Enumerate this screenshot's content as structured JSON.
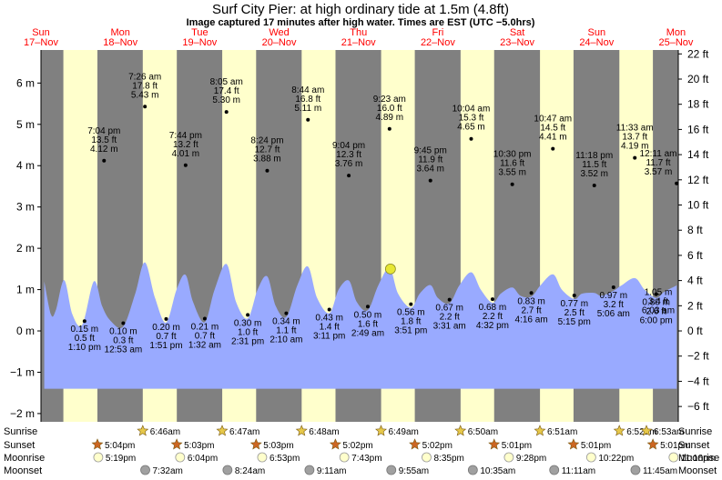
{
  "colors": {
    "day_bg": "#ffffcc",
    "night_bg": "#808080",
    "tide_fill": "#99aaff",
    "current_marker": "#e6e633",
    "day_text": "#ff0000",
    "sun_star": "#e6c84a",
    "sunset_star": "#cc6622",
    "moonrise": "#ffffcc",
    "moonset": "#a0a0a0"
  },
  "chart_data": {
    "type": "area",
    "title": "Surf City Pier: at high  ordinary tide at 1.5m (4.8ft)",
    "subtitle": "Image captured 17 minutes after high water. Times are EST (UTC −5.0hrs)",
    "days": [
      {
        "dow": "Sun",
        "date": "17–Nov"
      },
      {
        "dow": "Mon",
        "date": "18–Nov"
      },
      {
        "dow": "Tue",
        "date": "19–Nov"
      },
      {
        "dow": "Wed",
        "date": "20–Nov"
      },
      {
        "dow": "Thu",
        "date": "21–Nov"
      },
      {
        "dow": "Fri",
        "date": "22–Nov"
      },
      {
        "dow": "Sat",
        "date": "23–Nov"
      },
      {
        "dow": "Sun",
        "date": "24–Nov"
      },
      {
        "dow": "Mon",
        "date": "25–Nov"
      }
    ],
    "x_unit": "hours from 17-Nov 00:00 EST",
    "x_range": [
      0,
      192.7
    ],
    "y_left": {
      "unit": "m",
      "ylim": [
        -2.2,
        6.8
      ],
      "ticks": [
        -2,
        -1,
        0,
        1,
        2,
        3,
        4,
        5,
        6
      ]
    },
    "y_right": {
      "unit": "ft",
      "ticks": [
        -6,
        -4,
        -2,
        0,
        2,
        4,
        6,
        8,
        10,
        12,
        14,
        16,
        18,
        20,
        22
      ]
    },
    "nights": [
      [
        0,
        6.77
      ],
      [
        17.07,
        30.78
      ],
      [
        41.07,
        54.8
      ],
      [
        65.05,
        78.82
      ],
      [
        89.05,
        102.85
      ],
      [
        113.03,
        126.87
      ],
      [
        137.02,
        150.88
      ],
      [
        161.02,
        174.88
      ],
      [
        185.02,
        192.7
      ]
    ],
    "tide_curve_m": [
      [
        1.0,
        1.2
      ],
      [
        3.0,
        0.4
      ],
      [
        4.5,
        0.5
      ],
      [
        7.0,
        1.23
      ],
      [
        9.5,
        0.4
      ],
      [
        12.5,
        0.15
      ],
      [
        16.0,
        1.2
      ],
      [
        18.5,
        0.6
      ],
      [
        21.0,
        0.25
      ],
      [
        24.8,
        0.1
      ],
      [
        28.5,
        0.9
      ],
      [
        31.4,
        1.66
      ],
      [
        34.5,
        0.8
      ],
      [
        37.8,
        0.2
      ],
      [
        41.0,
        1.0
      ],
      [
        43.7,
        1.36
      ],
      [
        46.0,
        0.7
      ],
      [
        49.5,
        0.21
      ],
      [
        52.5,
        1.0
      ],
      [
        56.1,
        1.62
      ],
      [
        59.0,
        0.7
      ],
      [
        62.5,
        0.3
      ],
      [
        65.5,
        1.0
      ],
      [
        68.4,
        1.32
      ],
      [
        71.0,
        0.6
      ],
      [
        74.2,
        0.34
      ],
      [
        77.5,
        1.1
      ],
      [
        80.7,
        1.56
      ],
      [
        83.5,
        0.8
      ],
      [
        87.2,
        0.43
      ],
      [
        90.0,
        1.0
      ],
      [
        93.1,
        1.22
      ],
      [
        95.5,
        0.7
      ],
      [
        98.8,
        0.5
      ],
      [
        102.0,
        1.1
      ],
      [
        105.4,
        1.52
      ],
      [
        108.0,
        0.9
      ],
      [
        111.85,
        0.56
      ],
      [
        114.5,
        0.9
      ],
      [
        117.75,
        1.11
      ],
      [
        120.0,
        0.8
      ],
      [
        123.5,
        0.67
      ],
      [
        126.5,
        1.1
      ],
      [
        130.1,
        1.42
      ],
      [
        133.0,
        1.0
      ],
      [
        136.5,
        0.68
      ],
      [
        139.0,
        0.9
      ],
      [
        142.5,
        1.05
      ],
      [
        145.0,
        0.85
      ],
      [
        148.3,
        0.83
      ],
      [
        151.0,
        1.1
      ],
      [
        154.8,
        1.37
      ],
      [
        157.5,
        1.0
      ],
      [
        161.25,
        0.77
      ],
      [
        163.5,
        0.9
      ],
      [
        167.3,
        0.92
      ],
      [
        169.5,
        0.85
      ],
      [
        173.1,
        0.97
      ],
      [
        175.5,
        1.1
      ],
      [
        179.55,
        1.28
      ],
      [
        182.5,
        1.0
      ],
      [
        186.0,
        0.8
      ],
      [
        188.5,
        0.95
      ],
      [
        192.2,
        1.1
      ]
    ],
    "extremes": [
      {
        "kind": "high",
        "t": 19.07,
        "level_m": 4.12,
        "time": "7:04 pm",
        "ft": "13.5 ft",
        "m": "4.12 m"
      },
      {
        "kind": "high",
        "t": 31.43,
        "level_m": 5.43,
        "time": "7:26 am",
        "ft": "17.8 ft",
        "m": "5.43 m"
      },
      {
        "kind": "high",
        "t": 43.73,
        "level_m": 4.01,
        "time": "7:44 pm",
        "ft": "13.2 ft",
        "m": "4.01 m"
      },
      {
        "kind": "high",
        "t": 56.08,
        "level_m": 5.3,
        "time": "8:05 am",
        "ft": "17.4 ft",
        "m": "5.30 m"
      },
      {
        "kind": "high",
        "t": 68.4,
        "level_m": 3.88,
        "time": "8:24 pm",
        "ft": "12.7 ft",
        "m": "3.88 m"
      },
      {
        "kind": "high",
        "t": 80.73,
        "level_m": 5.11,
        "time": "8:44 am",
        "ft": "16.8 ft",
        "m": "5.11 m"
      },
      {
        "kind": "high",
        "t": 93.07,
        "level_m": 3.76,
        "time": "9:04 pm",
        "ft": "12.3 ft",
        "m": "3.76 m"
      },
      {
        "kind": "high",
        "t": 105.38,
        "level_m": 4.89,
        "time": "9:23 am",
        "ft": "16.0 ft",
        "m": "4.89 m"
      },
      {
        "kind": "high",
        "t": 117.75,
        "level_m": 3.64,
        "time": "9:45 pm",
        "ft": "11.9 ft",
        "m": "3.64 m"
      },
      {
        "kind": "high",
        "t": 130.07,
        "level_m": 4.65,
        "time": "10:04 am",
        "ft": "15.3 ft",
        "m": "4.65 m"
      },
      {
        "kind": "high",
        "t": 142.5,
        "level_m": 3.55,
        "time": "10:30 pm",
        "ft": "11.6 ft",
        "m": "3.55 m"
      },
      {
        "kind": "high",
        "t": 154.78,
        "level_m": 4.41,
        "time": "10:47 am",
        "ft": "14.5 ft",
        "m": "4.41 m"
      },
      {
        "kind": "high",
        "t": 167.3,
        "level_m": 3.52,
        "time": "11:18 pm",
        "ft": "11.5 ft",
        "m": "3.52 m"
      },
      {
        "kind": "high",
        "t": 179.55,
        "level_m": 4.19,
        "time": "11:33 am",
        "ft": "13.7 ft",
        "m": "4.19 m"
      },
      {
        "kind": "high",
        "t": 192.18,
        "level_m": 3.57,
        "time": "12:11 am",
        "ft": "11.7 ft",
        "m": "3.57 m"
      },
      {
        "kind": "low",
        "t": 13.17,
        "level_m": 0.15,
        "time": "1:10 pm",
        "ft": "0.5 ft",
        "m": "0.15 m"
      },
      {
        "kind": "low",
        "t": 24.88,
        "level_m": 0.1,
        "time": "12:53 am",
        "ft": "0.3 ft",
        "m": "0.10 m"
      },
      {
        "kind": "low",
        "t": 37.85,
        "level_m": 0.2,
        "time": "1:51 pm",
        "ft": "0.7 ft",
        "m": "0.20 m"
      },
      {
        "kind": "low",
        "t": 49.53,
        "level_m": 0.21,
        "time": "1:32 am",
        "ft": "0.7 ft",
        "m": "0.21 m"
      },
      {
        "kind": "low",
        "t": 62.52,
        "level_m": 0.3,
        "time": "2:31 pm",
        "ft": "1.0 ft",
        "m": "0.30 m"
      },
      {
        "kind": "low",
        "t": 74.17,
        "level_m": 0.34,
        "time": "2:10 am",
        "ft": "1.1 ft",
        "m": "0.34 m"
      },
      {
        "kind": "low",
        "t": 87.18,
        "level_m": 0.43,
        "time": "3:11 pm",
        "ft": "1.4 ft",
        "m": "0.43 m"
      },
      {
        "kind": "low",
        "t": 98.82,
        "level_m": 0.5,
        "time": "2:49 am",
        "ft": "1.6 ft",
        "m": "0.50 m"
      },
      {
        "kind": "low",
        "t": 111.85,
        "level_m": 0.56,
        "time": "3:51 pm",
        "ft": "1.8 ft",
        "m": "0.56 m"
      },
      {
        "kind": "low",
        "t": 123.52,
        "level_m": 0.67,
        "time": "3:31 am",
        "ft": "2.2 ft",
        "m": "0.67 m"
      },
      {
        "kind": "low",
        "t": 136.53,
        "level_m": 0.68,
        "time": "4:32 pm",
        "ft": "2.2 ft",
        "m": "0.68 m"
      },
      {
        "kind": "low",
        "t": 148.27,
        "level_m": 0.83,
        "time": "4:16 am",
        "ft": "2.7 ft",
        "m": "0.83 m"
      },
      {
        "kind": "low",
        "t": 161.25,
        "level_m": 0.77,
        "time": "5:15 pm",
        "ft": "2.5 ft",
        "m": "0.77 m"
      },
      {
        "kind": "low",
        "t": 173.1,
        "level_m": 0.97,
        "time": "5:06 am",
        "ft": "3.2 ft",
        "m": "0.97 m"
      },
      {
        "kind": "low",
        "t": 186.0,
        "level_m": 0.8,
        "time": "6:00 pm",
        "ft": "2.6 ft",
        "m": "0.80 m"
      },
      {
        "kind": "low",
        "t": 198.05,
        "level_m": 1.05,
        "time": "6:03 am",
        "ft": "3.4 ft",
        "m": "1.05 m"
      }
    ],
    "current": {
      "t": 105.67,
      "level_m": 1.5
    }
  },
  "rows": {
    "sunrise_label": "Sunrise",
    "sunset_label": "Sunset",
    "moonrise_label": "Moonrise",
    "moonset_label": "Moonset",
    "sunrise": [
      {
        "t": 30.77,
        "time": "6:46am"
      },
      {
        "t": 54.78,
        "time": "6:47am"
      },
      {
        "t": 78.8,
        "time": "6:48am"
      },
      {
        "t": 102.82,
        "time": "6:49am"
      },
      {
        "t": 126.83,
        "time": "6:50am"
      },
      {
        "t": 150.85,
        "time": "6:51am"
      },
      {
        "t": 174.87,
        "time": "6:52am"
      },
      {
        "t": 198.88,
        "time": "6:53am"
      }
    ],
    "sunset": [
      {
        "t": 17.07,
        "time": "5:04pm"
      },
      {
        "t": 41.05,
        "time": "5:03pm"
      },
      {
        "t": 65.05,
        "time": "5:03pm"
      },
      {
        "t": 89.03,
        "time": "5:02pm"
      },
      {
        "t": 113.03,
        "time": "5:02pm"
      },
      {
        "t": 137.02,
        "time": "5:01pm"
      },
      {
        "t": 161.02,
        "time": "5:01pm"
      },
      {
        "t": 185.02,
        "time": "5:01pm"
      }
    ],
    "moonrise": [
      {
        "t": 17.32,
        "time": "5:19pm"
      },
      {
        "t": 42.07,
        "time": "6:04pm"
      },
      {
        "t": 66.88,
        "time": "6:53pm"
      },
      {
        "t": 91.72,
        "time": "7:43pm"
      },
      {
        "t": 116.58,
        "time": "8:35pm"
      },
      {
        "t": 141.47,
        "time": "9:28pm"
      },
      {
        "t": 166.37,
        "time": "10:22pm"
      },
      {
        "t": 191.27,
        "time": "11:16pm"
      }
    ],
    "moonset": [
      {
        "t": 31.53,
        "time": "7:32am"
      },
      {
        "t": 56.4,
        "time": "8:24am"
      },
      {
        "t": 81.18,
        "time": "9:11am"
      },
      {
        "t": 105.92,
        "time": "9:55am"
      },
      {
        "t": 130.58,
        "time": "10:35am"
      },
      {
        "t": 155.18,
        "time": "11:11am"
      },
      {
        "t": 179.75,
        "time": "11:45am"
      }
    ]
  }
}
